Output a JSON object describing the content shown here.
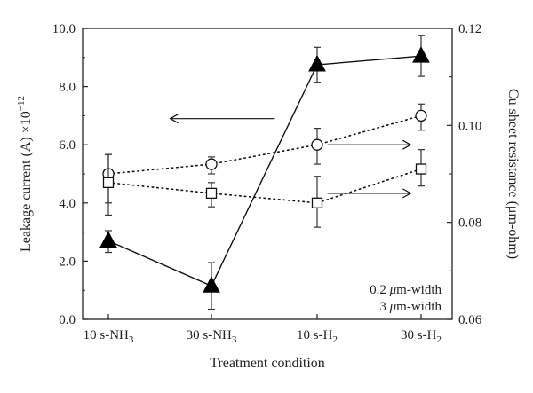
{
  "chart_data": {
    "type": "line",
    "title": "",
    "xlabel": "Treatment condition",
    "categories": [
      {
        "main": "10 s-NH",
        "sub": "3"
      },
      {
        "main": "30 s-NH",
        "sub": "3"
      },
      {
        "main": "10 s-H",
        "sub": "2"
      },
      {
        "main": "30 s-H",
        "sub": "2"
      }
    ],
    "y_left": {
      "label_main": "Leakage current (A) ×10",
      "label_sup": "−12",
      "ylim": [
        0,
        10
      ],
      "ticks": [
        "0.0",
        "2.0",
        "4.0",
        "6.0",
        "8.0",
        "10.0"
      ]
    },
    "y_right": {
      "label": "Cu sheet resistance (μm-ohm)",
      "ylim": [
        0.06,
        0.12
      ],
      "ticks": [
        "0.06",
        "0.08",
        "0.10",
        "0.12"
      ]
    },
    "series": [
      {
        "marker": "triangle-filled",
        "line": "solid",
        "axis": "left",
        "values": [
          2.7,
          1.15,
          8.75,
          9.05
        ],
        "errors": [
          [
            2.3,
            3.05
          ],
          [
            0.35,
            1.95
          ],
          [
            8.15,
            9.35
          ],
          [
            8.35,
            9.75
          ]
        ]
      },
      {
        "marker": "circle-open",
        "line": "dotted",
        "axis": "right",
        "values": [
          0.09,
          0.092,
          0.096,
          0.102
        ],
        "errors": [
          [
            0.084,
            0.094
          ],
          [
            0.09,
            0.0935
          ],
          [
            0.092,
            0.0994
          ],
          [
            0.099,
            0.1044
          ]
        ]
      },
      {
        "marker": "square-open",
        "line": "dotted",
        "axis": "right",
        "values": [
          0.0882,
          0.086,
          0.084,
          0.091
        ],
        "errors": [
          [
            0.0815,
            0.094
          ],
          [
            0.0832,
            0.0882
          ],
          [
            0.079,
            0.0895
          ],
          [
            0.0875,
            0.095
          ]
        ]
      }
    ],
    "annotations": {
      "legend_lines": [
        {
          "num": "0.2",
          "unit": "μm-width"
        },
        {
          "num": "3",
          "unit": "μm-width"
        }
      ],
      "arrows": [
        {
          "direction": "left",
          "y_axis": "left",
          "y": 6.9,
          "x_from": 1.6,
          "x_to": 0.6
        },
        {
          "direction": "right",
          "y_axis": "right",
          "y": 0.096,
          "x_from": 2.1,
          "x_to": 2.9
        },
        {
          "direction": "right",
          "y_axis": "right",
          "y": 0.086,
          "x_from": 2.1,
          "x_to": 2.9
        }
      ]
    },
    "legend_position": "bottom-right",
    "grid": false
  }
}
